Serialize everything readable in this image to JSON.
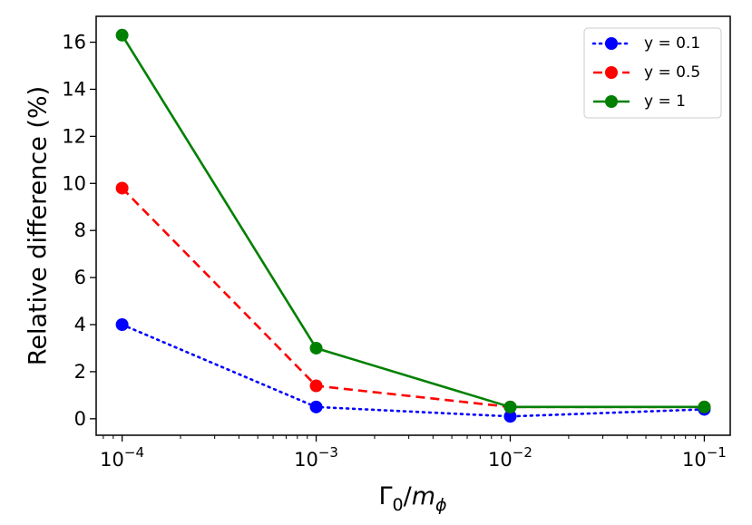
{
  "chart_data": {
    "type": "line",
    "x_scale": "log",
    "x": [
      0.0001,
      0.001,
      0.01,
      0.1
    ],
    "xlabel": {
      "main": "Γ",
      "sub0": "0",
      "slash": "/",
      "m": "m",
      "sub1": "ϕ"
    },
    "ylabel": "Relative difference (%)",
    "xlim": [
      7.35e-05,
      0.136
    ],
    "ylim": [
      -0.7,
      17.1
    ],
    "x_ticks": [
      {
        "value": 0.0001,
        "base": "10",
        "exp": "−4"
      },
      {
        "value": 0.001,
        "base": "10",
        "exp": "−3"
      },
      {
        "value": 0.01,
        "base": "10",
        "exp": "−2"
      },
      {
        "value": 0.1,
        "base": "10",
        "exp": "−1"
      }
    ],
    "y_ticks": [
      0,
      2,
      4,
      6,
      8,
      10,
      12,
      14,
      16
    ],
    "grid": false,
    "legend_position": "top-right",
    "series": [
      {
        "name": "y = 0.1",
        "values": [
          4.0,
          0.5,
          0.1,
          0.4
        ],
        "color": "#0000ff",
        "linestyle": "dotted",
        "key": "y01"
      },
      {
        "name": "y = 0.5",
        "values": [
          9.8,
          1.4,
          0.5,
          0.5
        ],
        "color": "#ff0000",
        "linestyle": "dashed",
        "key": "y05"
      },
      {
        "name": "y = 1",
        "values": [
          16.3,
          3.0,
          0.5,
          0.5
        ],
        "color": "#008000",
        "linestyle": "solid",
        "key": "y1"
      }
    ]
  }
}
